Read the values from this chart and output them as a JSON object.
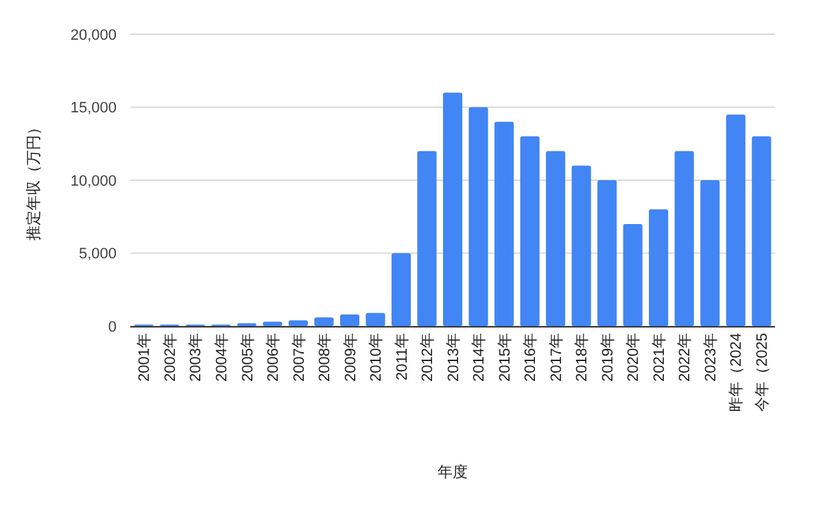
{
  "chart_data": {
    "type": "bar",
    "xlabel": "年度",
    "ylabel": "推定年収（万円）",
    "categories": [
      "2001年",
      "2002年",
      "2003年",
      "2004年",
      "2005年",
      "2006年",
      "2007年",
      "2008年",
      "2009年",
      "2010年",
      "2011年",
      "2012年",
      "2013年",
      "2014年",
      "2015年",
      "2016年",
      "2017年",
      "2018年",
      "2019年",
      "2020年",
      "2021年",
      "2022年",
      "2023年",
      "昨年（2024",
      "今年（2025"
    ],
    "values": [
      100,
      100,
      100,
      100,
      200,
      300,
      400,
      600,
      800,
      900,
      5000,
      12000,
      16000,
      15000,
      14000,
      13000,
      12000,
      11000,
      10000,
      7000,
      8000,
      12000,
      10000,
      14500,
      13000
    ],
    "color": "#4285f4",
    "ylim": [
      0,
      20000
    ],
    "yticks": [
      {
        "value": 0,
        "label": "0"
      },
      {
        "value": 5000,
        "label": "5,000"
      },
      {
        "value": 10000,
        "label": "10,000"
      },
      {
        "value": 15000,
        "label": "15,000"
      },
      {
        "value": 20000,
        "label": "20,000"
      }
    ],
    "grid": "y"
  }
}
